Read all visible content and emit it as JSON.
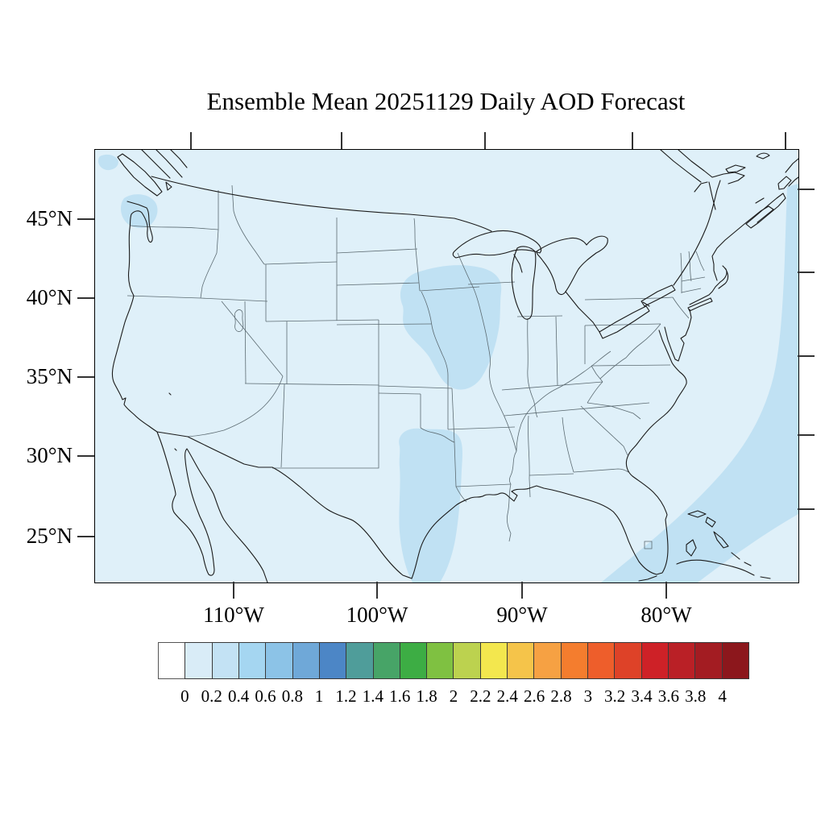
{
  "title": "Ensemble Mean 20251129 Daily AOD Forecast",
  "axes": {
    "lat_labels": [
      "45°N",
      "40°N",
      "35°N",
      "30°N",
      "25°N"
    ],
    "lon_labels": [
      "110°W",
      "100°W",
      "90°W",
      "80°W"
    ]
  },
  "colors": {
    "map_background_aod_0_02": "#dff0f9",
    "map_patch_aod_02_04": "#c0e1f3",
    "coastline": "#1a1a1a",
    "state_border": "#5c6b72",
    "frame": "#000000"
  },
  "colorbar": {
    "labels": [
      "0",
      "0.2",
      "0.4",
      "0.6",
      "0.8",
      "1",
      "1.2",
      "1.4",
      "1.6",
      "1.8",
      "2",
      "2.2",
      "2.4",
      "2.6",
      "2.8",
      "3",
      "3.2",
      "3.4",
      "3.6",
      "3.8",
      "4"
    ],
    "colors": [
      "#ffffff",
      "#d9ecf7",
      "#c3e2f4",
      "#a5d6f1",
      "#8cc3e7",
      "#6fa8d8",
      "#4c86c6",
      "#4f9d9a",
      "#47a467",
      "#3dad44",
      "#7fc141",
      "#bcd24f",
      "#f3e74e",
      "#f5c44a",
      "#f6a143",
      "#f47d2e",
      "#ee5e2b",
      "#de4228",
      "#ce2127",
      "#ba2026",
      "#a31c22",
      "#8c171c"
    ]
  },
  "chart_data": {
    "type": "heatmap",
    "title": "Ensemble Mean 20251129 Daily AOD Forecast",
    "variable": "Daily mean Aerosol Optical Depth (AOD), ensemble mean forecast",
    "date_shown_in_title": "20251129",
    "region": "Contiguous United States with southern Canada, northern Mexico, Cuba and Bahamas",
    "projection_note": "filled-contour map, rectangular frame with exterior tick marks",
    "x_ticks": [
      "110°W",
      "100°W",
      "90°W",
      "80°W"
    ],
    "y_ticks": [
      "45°N",
      "40°N",
      "35°N",
      "30°N",
      "25°N"
    ],
    "colorbar_levels": [
      0,
      0.2,
      0.4,
      0.6,
      0.8,
      1,
      1.2,
      1.4,
      1.6,
      1.8,
      2,
      2.2,
      2.4,
      2.6,
      2.8,
      3,
      3.2,
      3.4,
      3.6,
      3.8,
      4
    ],
    "colorbar_orientation": "horizontal, below map",
    "field_values": [
      {
        "area": "entire domain background (land and ocean)",
        "aod": "0.0–0.2"
      },
      {
        "area": "Puget Sound / western Washington and small offshore spot",
        "aod": "0.2–0.4"
      },
      {
        "area": "Iowa, northern Missouri, eastern Nebraska / southeast South Dakota",
        "aod": "0.2–0.4"
      },
      {
        "area": "eastern Texas from Red River to Gulf coast",
        "aod": "0.2–0.4"
      },
      {
        "area": "western Atlantic offshore band along right edge curving to Florida Straits / Bahamas",
        "aod": "0.2–0.4"
      }
    ],
    "max_value_shown": 0.4,
    "legend_position": "bottom"
  }
}
